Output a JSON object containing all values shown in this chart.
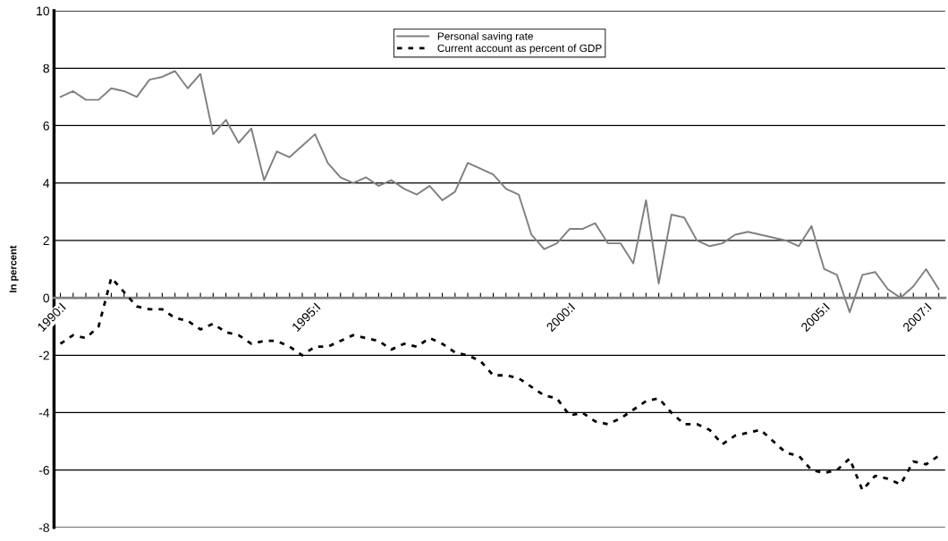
{
  "chart_data": {
    "type": "line",
    "ylabel": "In percent",
    "categories": [
      "1990:I",
      null,
      null,
      null,
      null,
      null,
      null,
      null,
      null,
      null,
      null,
      null,
      null,
      null,
      null,
      null,
      null,
      null,
      null,
      null,
      "1995:I",
      null,
      null,
      null,
      null,
      null,
      null,
      null,
      null,
      null,
      null,
      null,
      null,
      null,
      null,
      null,
      null,
      null,
      null,
      null,
      "2000:I",
      null,
      null,
      null,
      null,
      null,
      null,
      null,
      null,
      null,
      null,
      null,
      null,
      null,
      null,
      null,
      null,
      null,
      null,
      null,
      "2005:I",
      null,
      null,
      null,
      null,
      null,
      null,
      null,
      "2007:I",
      null
    ],
    "series": [
      {
        "name": "Personal saving rate",
        "color": "#808080",
        "line_style": "solid",
        "values": [
          7.0,
          7.2,
          6.9,
          6.9,
          7.3,
          7.2,
          7.0,
          7.6,
          7.7,
          7.9,
          7.3,
          7.8,
          5.7,
          6.2,
          5.4,
          5.9,
          4.1,
          5.1,
          4.9,
          5.3,
          5.7,
          4.7,
          4.2,
          4.0,
          4.2,
          3.9,
          4.1,
          3.8,
          3.6,
          3.9,
          3.4,
          3.7,
          4.7,
          4.5,
          4.3,
          3.8,
          3.6,
          2.2,
          1.7,
          1.9,
          2.4,
          2.4,
          2.6,
          1.9,
          1.9,
          1.2,
          3.4,
          0.5,
          2.9,
          2.8,
          2.0,
          1.8,
          1.9,
          2.2,
          2.3,
          2.2,
          2.1,
          2.0,
          1.8,
          2.5,
          1.0,
          0.8,
          -0.5,
          0.8,
          0.9,
          0.3,
          0.0,
          0.4,
          1.0,
          0.3
        ]
      },
      {
        "name": "Current account as percent of GDP",
        "color": "#000000",
        "line_style": "dotted",
        "values": [
          -1.6,
          -1.3,
          -1.4,
          -1.0,
          0.7,
          0.2,
          -0.3,
          -0.4,
          -0.4,
          -0.7,
          -0.8,
          -1.1,
          -0.9,
          -1.2,
          -1.3,
          -1.6,
          -1.5,
          -1.5,
          -1.7,
          -2.0,
          -1.7,
          -1.7,
          -1.5,
          -1.3,
          -1.4,
          -1.5,
          -1.8,
          -1.6,
          -1.7,
          -1.4,
          -1.6,
          -1.9,
          -2.0,
          -2.2,
          -2.7,
          -2.7,
          -2.8,
          -3.1,
          -3.4,
          -3.5,
          -4.1,
          -4.0,
          -4.3,
          -4.4,
          -4.2,
          -3.9,
          -3.6,
          -3.5,
          -4.0,
          -4.4,
          -4.4,
          -4.6,
          -5.1,
          -4.8,
          -4.7,
          -4.6,
          -5.0,
          -5.4,
          -5.5,
          -6.0,
          -6.1,
          -6.0,
          -5.6,
          -6.7,
          -6.2,
          -6.3,
          -6.5,
          -5.7,
          -5.8,
          -5.5
        ]
      }
    ],
    "ylim": [
      -8,
      10
    ],
    "yticks": [
      -8,
      -6,
      -4,
      -2,
      0,
      2,
      4,
      6,
      8,
      10
    ],
    "grid": "y",
    "legend": "top",
    "marker": "none"
  }
}
